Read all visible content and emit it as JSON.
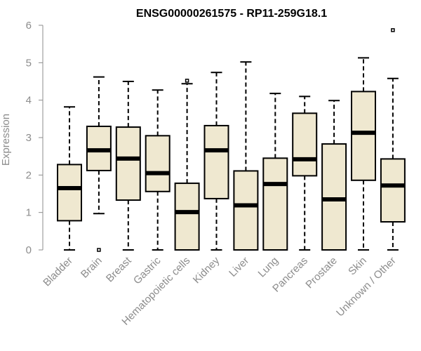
{
  "chart_data": {
    "type": "box",
    "title": "ENSG00000261575 - RP11-259G18.1",
    "xlabel": "",
    "ylabel": "Expression",
    "ylim": [
      0,
      6
    ],
    "yticks": [
      0,
      1,
      2,
      3,
      4,
      5,
      6
    ],
    "grid": false,
    "box_fill": "#efe8d0",
    "box_stroke": "#000000",
    "categories": [
      "Bladder",
      "Brain",
      "Breast",
      "Gastric",
      "Hematopoietic cells",
      "Kidney",
      "Liver",
      "Lung",
      "Pancreas",
      "Prostate",
      "Skin",
      "Unknown / Other"
    ],
    "boxes": [
      {
        "whisker_low": 0.0,
        "q1": 0.78,
        "median": 1.65,
        "q3": 2.28,
        "whisker_high": 3.82,
        "outliers": []
      },
      {
        "whisker_low": 0.97,
        "q1": 2.12,
        "median": 2.66,
        "q3": 3.3,
        "whisker_high": 4.62,
        "outliers": [
          0.0
        ]
      },
      {
        "whisker_low": 0.0,
        "q1": 1.33,
        "median": 2.44,
        "q3": 3.28,
        "whisker_high": 4.5,
        "outliers": []
      },
      {
        "whisker_low": 0.0,
        "q1": 1.56,
        "median": 2.05,
        "q3": 3.05,
        "whisker_high": 4.27,
        "outliers": []
      },
      {
        "whisker_low": 0.0,
        "q1": 0.0,
        "median": 1.01,
        "q3": 1.78,
        "whisker_high": 4.44,
        "outliers": [
          4.52
        ]
      },
      {
        "whisker_low": 0.0,
        "q1": 1.37,
        "median": 2.66,
        "q3": 3.32,
        "whisker_high": 4.74,
        "outliers": []
      },
      {
        "whisker_low": 0.0,
        "q1": 0.0,
        "median": 1.19,
        "q3": 2.11,
        "whisker_high": 5.02,
        "outliers": []
      },
      {
        "whisker_low": 0.0,
        "q1": 0.0,
        "median": 1.76,
        "q3": 2.45,
        "whisker_high": 4.18,
        "outliers": []
      },
      {
        "whisker_low": 0.0,
        "q1": 1.98,
        "median": 2.42,
        "q3": 3.65,
        "whisker_high": 4.1,
        "outliers": []
      },
      {
        "whisker_low": 0.0,
        "q1": 0.0,
        "median": 1.35,
        "q3": 2.83,
        "whisker_high": 3.99,
        "outliers": []
      },
      {
        "whisker_low": 0.0,
        "q1": 1.86,
        "median": 3.13,
        "q3": 4.23,
        "whisker_high": 5.13,
        "outliers": []
      },
      {
        "whisker_low": 0.0,
        "q1": 0.75,
        "median": 1.72,
        "q3": 2.43,
        "whisker_high": 4.58,
        "outliers": [
          5.87
        ]
      }
    ]
  }
}
